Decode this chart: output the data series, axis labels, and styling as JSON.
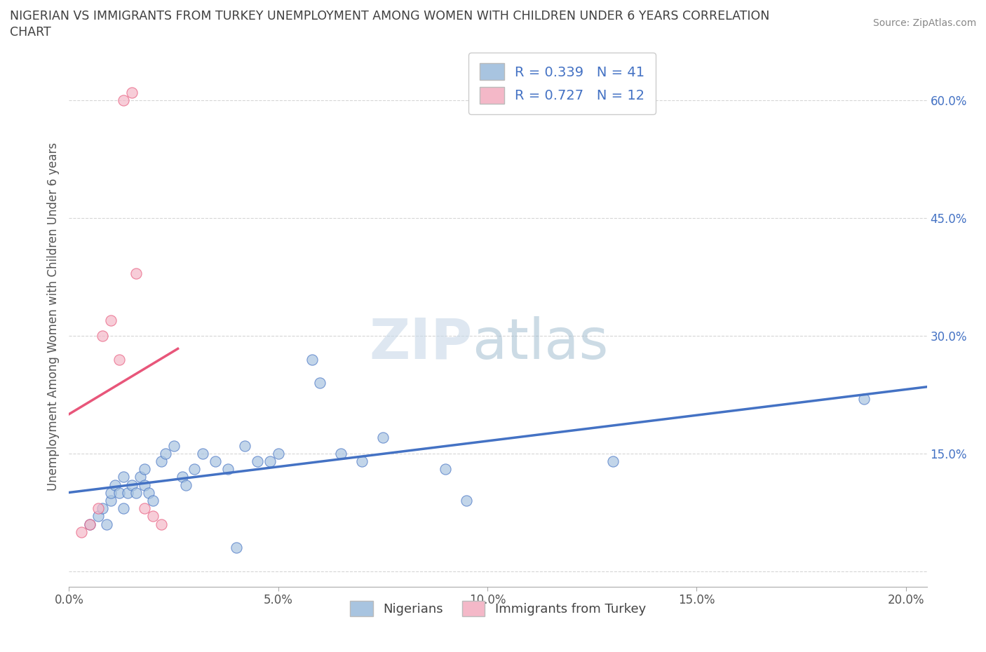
{
  "title_line1": "NIGERIAN VS IMMIGRANTS FROM TURKEY UNEMPLOYMENT AMONG WOMEN WITH CHILDREN UNDER 6 YEARS CORRELATION",
  "title_line2": "CHART",
  "source": "Source: ZipAtlas.com",
  "ylabel": "Unemployment Among Women with Children Under 6 years",
  "xlim": [
    0.0,
    0.205
  ],
  "ylim": [
    -0.02,
    0.67
  ],
  "xticks": [
    0.0,
    0.05,
    0.1,
    0.15,
    0.2
  ],
  "yticks": [
    0.0,
    0.15,
    0.3,
    0.45,
    0.6
  ],
  "xtick_labels": [
    "0.0%",
    "5.0%",
    "10.0%",
    "15.0%",
    "20.0%"
  ],
  "right_ytick_labels": [
    "",
    "15.0%",
    "30.0%",
    "45.0%",
    "60.0%"
  ],
  "watermark_zip": "ZIP",
  "watermark_atlas": "atlas",
  "nigerians_x": [
    0.005,
    0.007,
    0.008,
    0.009,
    0.01,
    0.01,
    0.011,
    0.012,
    0.013,
    0.013,
    0.014,
    0.015,
    0.016,
    0.017,
    0.018,
    0.018,
    0.019,
    0.02,
    0.022,
    0.023,
    0.025,
    0.027,
    0.028,
    0.03,
    0.032,
    0.035,
    0.038,
    0.04,
    0.042,
    0.045,
    0.048,
    0.05,
    0.058,
    0.06,
    0.065,
    0.07,
    0.075,
    0.09,
    0.095,
    0.13,
    0.19
  ],
  "nigerians_y": [
    0.06,
    0.07,
    0.08,
    0.06,
    0.09,
    0.1,
    0.11,
    0.1,
    0.08,
    0.12,
    0.1,
    0.11,
    0.1,
    0.12,
    0.11,
    0.13,
    0.1,
    0.09,
    0.14,
    0.15,
    0.16,
    0.12,
    0.11,
    0.13,
    0.15,
    0.14,
    0.13,
    0.03,
    0.16,
    0.14,
    0.14,
    0.15,
    0.27,
    0.24,
    0.15,
    0.14,
    0.17,
    0.13,
    0.09,
    0.14,
    0.22
  ],
  "turkey_x": [
    0.003,
    0.005,
    0.007,
    0.008,
    0.01,
    0.012,
    0.013,
    0.015,
    0.016,
    0.018,
    0.02,
    0.022
  ],
  "turkey_y": [
    0.05,
    0.06,
    0.08,
    0.3,
    0.32,
    0.27,
    0.6,
    0.61,
    0.38,
    0.08,
    0.07,
    0.06
  ],
  "nigerians_color": "#a8c4e0",
  "turkey_color": "#f4b8c8",
  "nigerians_line_color": "#4472c4",
  "turkey_line_color": "#e8567a",
  "nigerians_R": 0.339,
  "nigerians_N": 41,
  "turkey_R": 0.727,
  "turkey_N": 12,
  "legend_text_color": "#4472c4",
  "background_color": "#ffffff",
  "grid_color": "#cccccc",
  "title_color": "#404040",
  "axis_label_color": "#555555"
}
